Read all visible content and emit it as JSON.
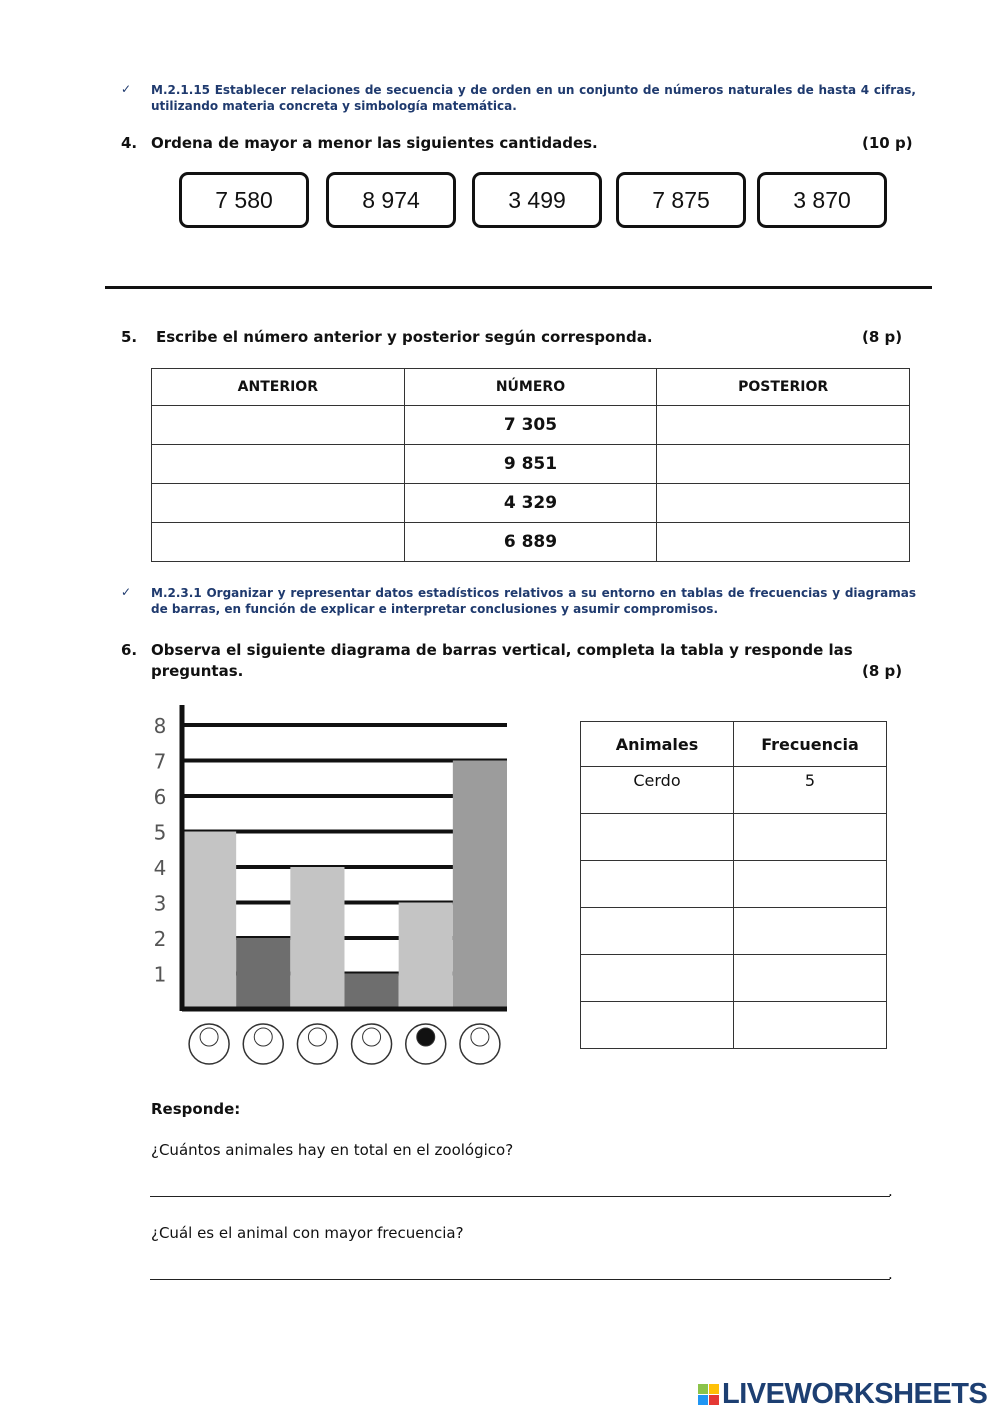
{
  "section4": {
    "objective_check": "✓",
    "objective": "M.2.1.15 Establecer relaciones de secuencia y de orden en un conjunto de números naturales de hasta 4 cifras, utilizando materia concreta y simbología matemática.",
    "number": "4.",
    "question": "Ordena de mayor a menor las siguientes cantidades.",
    "points": "(10 p)",
    "quantities": [
      "7 580",
      "8 974",
      "3 499",
      "7 875",
      "3 870"
    ]
  },
  "section5": {
    "number": "5.",
    "question": "Escribe el número anterior y posterior según corresponda.",
    "points": "(8 p)",
    "headers": [
      "ANTERIOR",
      "NÚMERO",
      "POSTERIOR"
    ],
    "rows": [
      [
        "",
        "7 305",
        ""
      ],
      [
        "",
        "9 851",
        ""
      ],
      [
        "",
        "4 329",
        ""
      ],
      [
        "",
        "6 889",
        ""
      ]
    ]
  },
  "section6": {
    "objective_check": "✓",
    "objective": "M.2.3.1 Organizar y representar datos estadísticos relativos a su entorno en tablas de frecuencias y diagramas de barras, en función de explicar e interpretar conclusiones y asumir compromisos.",
    "number": "6.",
    "question_line1": "Observa el siguiente diagrama de barras vertical, completa la tabla y responde las",
    "question_line2": "preguntas.",
    "points": "(8 p)",
    "table": {
      "headers": [
        "Animales",
        "Frecuencia"
      ],
      "rows": [
        [
          "Cerdo",
          "5"
        ],
        [
          "",
          ""
        ],
        [
          "",
          ""
        ],
        [
          "",
          ""
        ],
        [
          "",
          ""
        ],
        [
          "",
          ""
        ]
      ]
    },
    "respond_label": "Responde:",
    "questions": [
      {
        "text": "¿Cuántos animales hay en total en el zoológico?",
        "end": "."
      },
      {
        "text": "¿Cuál es el animal con mayor frecuencia?",
        "end": "."
      }
    ]
  },
  "chart_data": {
    "type": "bar",
    "categories": [
      "pig-icon",
      "dog-icon",
      "giraffe-icon",
      "elephant-icon",
      "panda-icon",
      "lion-icon"
    ],
    "values": [
      5,
      2,
      4,
      1,
      3,
      7
    ],
    "yticks": [
      "1",
      "2",
      "3",
      "4",
      "5",
      "6",
      "7",
      "8"
    ],
    "ylim": [
      0,
      8
    ],
    "grid": true,
    "colors": [
      "#c4c4c4",
      "#6e6e6e",
      "#c4c4c4",
      "#6e6e6e",
      "#c4c4c4",
      "#9c9c9c"
    ]
  },
  "footer": {
    "logo": "LIVEWORKSHEETS"
  }
}
